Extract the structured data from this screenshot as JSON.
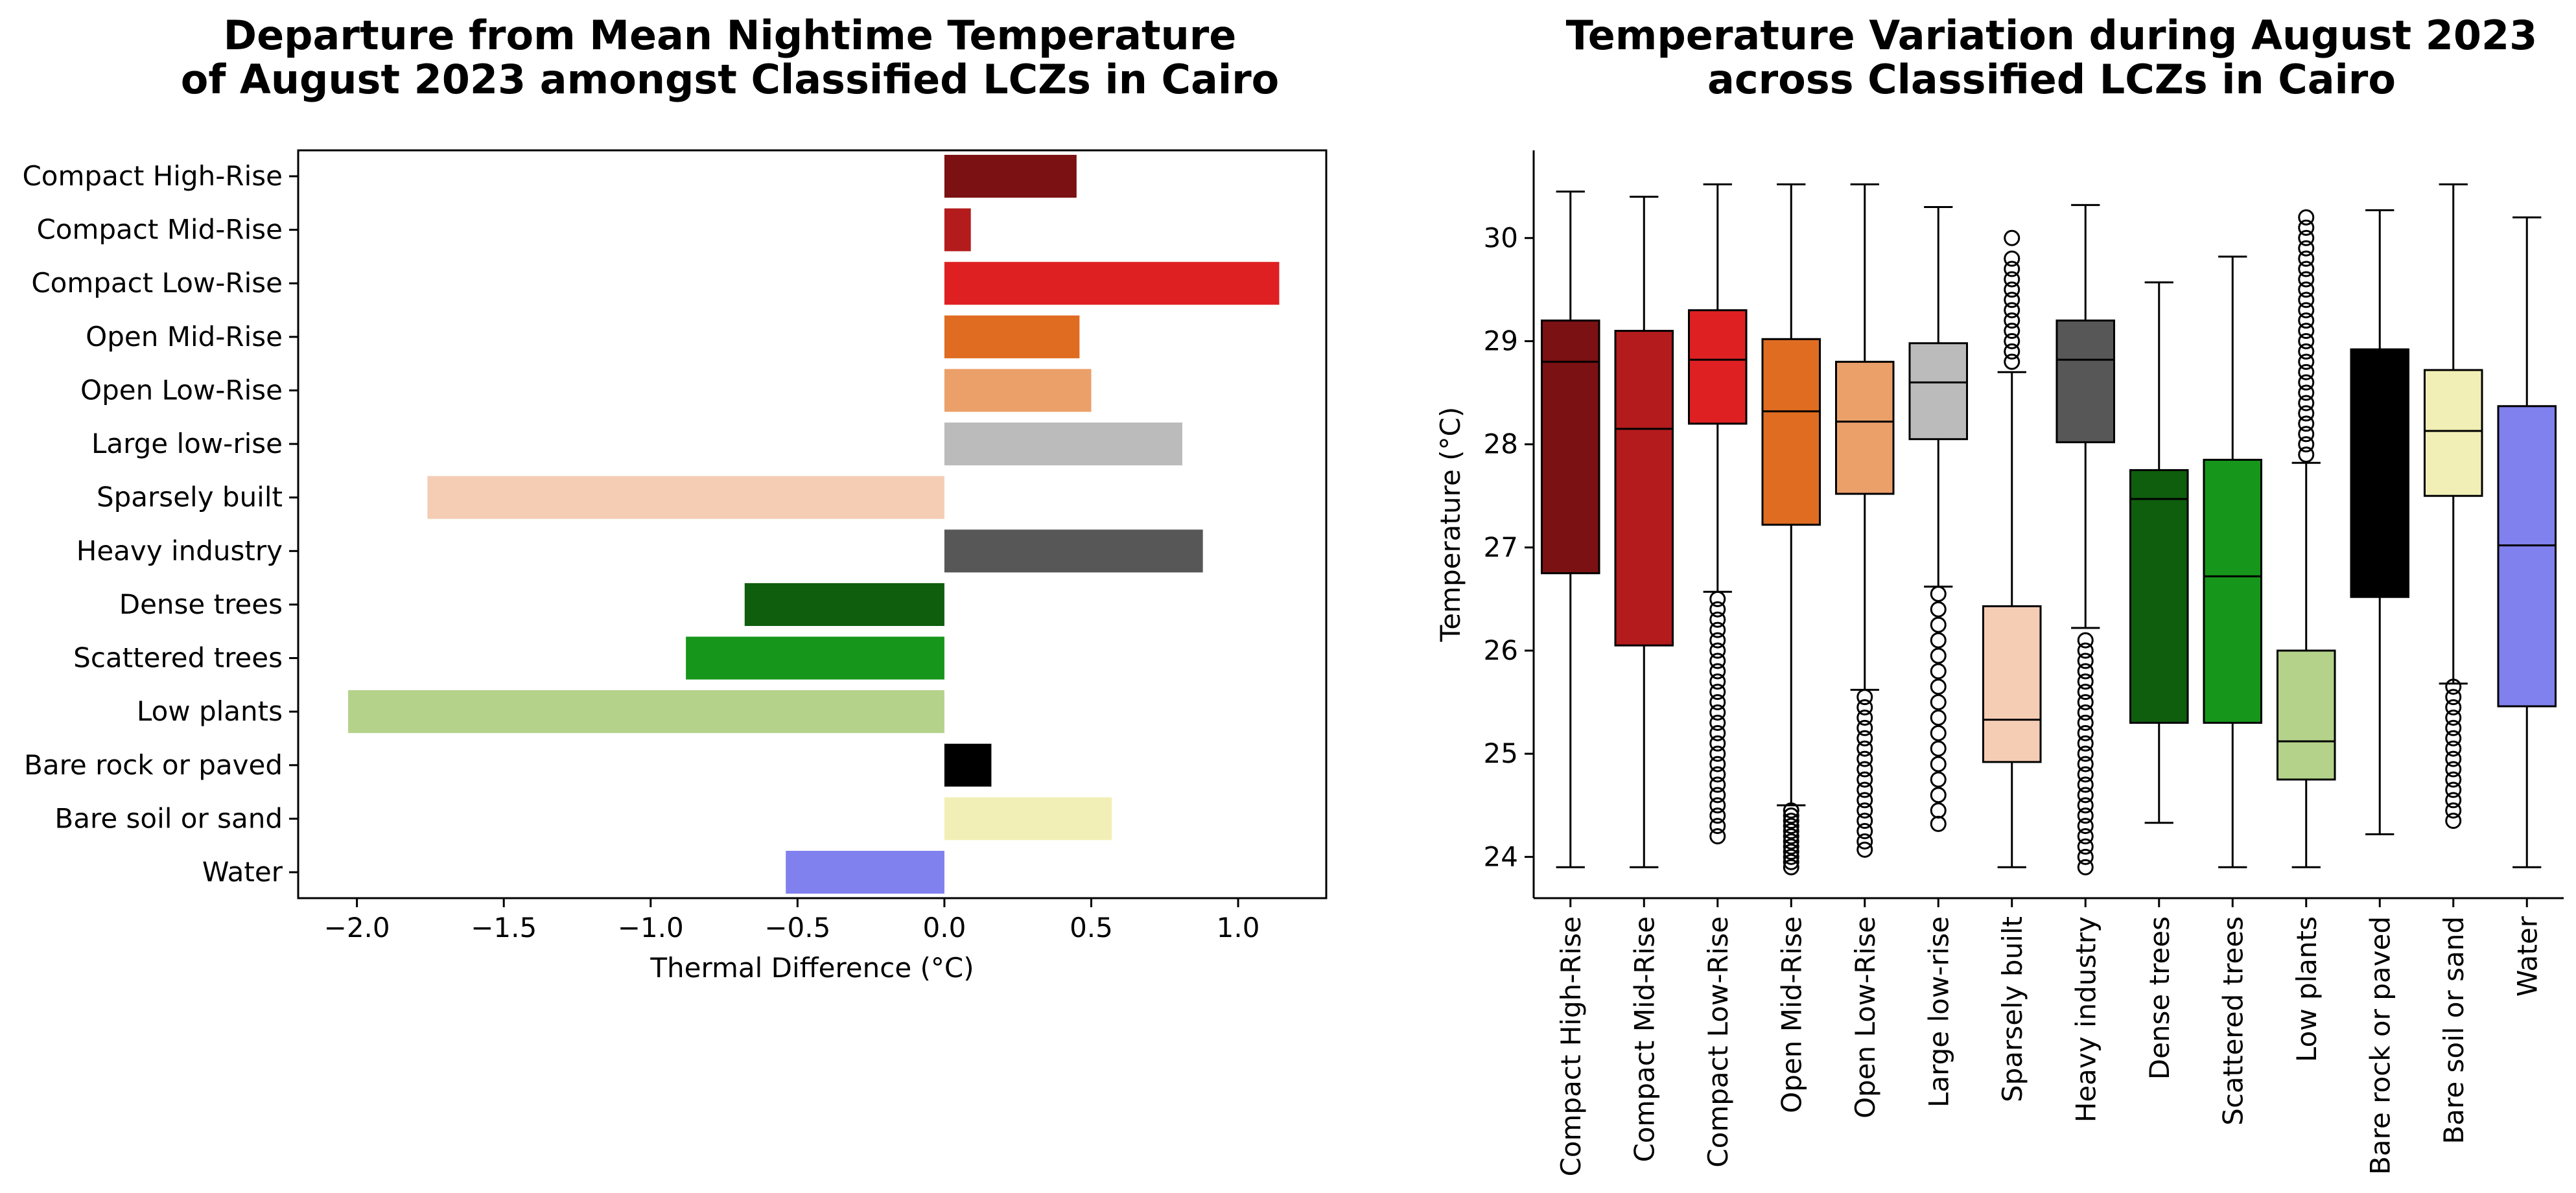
{
  "chart_data": [
    {
      "type": "bar",
      "orientation": "horizontal",
      "title": [
        "Departure from Mean Nightime Temperature",
        "of August 2023 amongst Classified LCZs in Cairo"
      ],
      "xlabel": "Thermal Difference (°C)",
      "ylabel": "",
      "xlim": [
        -2.2,
        1.3
      ],
      "xticks": [
        -2.0,
        -1.5,
        -1.0,
        -0.5,
        0.0,
        0.5,
        1.0
      ],
      "xtick_labels": [
        "−2.0",
        "−1.5",
        "−1.0",
        "−0.5",
        "0.0",
        "0.5",
        "1.0"
      ],
      "grid": false,
      "categories": [
        "Compact High-Rise",
        "Compact Mid-Rise",
        "Compact Low-Rise",
        "Open Mid-Rise",
        "Open Low-Rise",
        "Large low-rise",
        "Sparsely built",
        "Heavy industry",
        "Dense trees",
        "Scattered trees",
        "Low plants",
        "Bare rock or paved",
        "Bare soil or sand",
        "Water"
      ],
      "values": [
        0.45,
        0.09,
        1.14,
        0.46,
        0.5,
        0.81,
        -1.76,
        0.88,
        -0.68,
        -0.88,
        -2.03,
        0.16,
        0.57,
        -0.54
      ],
      "colors": [
        "#7b1113",
        "#b31b1c",
        "#df2022",
        "#e06c21",
        "#eba06a",
        "#bbbbbb",
        "#f4cdb4",
        "#575757",
        "#0e5e0e",
        "#16961a",
        "#b4d28a",
        "#000000",
        "#f2efb6",
        "#8080ee"
      ]
    },
    {
      "type": "box",
      "title": [
        "Temperature Variation during August 2023",
        "across Classified LCZs in Cairo"
      ],
      "xlabel": "",
      "ylabel": "Temperature (°C)",
      "ylim": [
        23.6,
        30.85
      ],
      "yticks": [
        24,
        25,
        26,
        27,
        28,
        29,
        30
      ],
      "grid": false,
      "categories": [
        "Compact High-Rise",
        "Compact Mid-Rise",
        "Compact Low-Rise",
        "Open Mid-Rise",
        "Open Low-Rise",
        "Large low-rise",
        "Sparsely built",
        "Heavy industry",
        "Dense trees",
        "Scattered trees",
        "Low plants",
        "Bare rock or paved",
        "Bare soil or sand",
        "Water"
      ],
      "colors": [
        "#7b1113",
        "#b31b1c",
        "#df2022",
        "#e06c21",
        "#eba06a",
        "#bbbbbb",
        "#f4cdb4",
        "#575757",
        "#0e5e0e",
        "#16961a",
        "#b4d28a",
        "#000000",
        "#f2efb6",
        "#8080ee"
      ],
      "boxes": [
        {
          "whislo": 23.9,
          "q1": 26.75,
          "med": 28.8,
          "q3": 29.2,
          "whishi": 30.45,
          "fliers": []
        },
        {
          "whislo": 23.9,
          "q1": 26.05,
          "med": 28.15,
          "q3": 29.1,
          "whishi": 30.4,
          "fliers": []
        },
        {
          "whislo": 26.57,
          "q1": 28.2,
          "med": 28.82,
          "q3": 29.3,
          "whishi": 30.52,
          "fliers": [
            24.2,
            24.3,
            24.4,
            24.5,
            24.6,
            24.7,
            24.8,
            24.9,
            25.0,
            25.1,
            25.2,
            25.3,
            25.4,
            25.5,
            25.6,
            25.7,
            25.8,
            25.9,
            26.0,
            26.1,
            26.2,
            26.3,
            26.4,
            26.5
          ]
        },
        {
          "whislo": 24.5,
          "q1": 27.22,
          "med": 28.32,
          "q3": 29.02,
          "whishi": 30.52,
          "fliers": [
            23.9,
            23.95,
            24.0,
            24.05,
            24.1,
            24.15,
            24.2,
            24.25,
            24.3,
            24.35,
            24.4,
            24.45
          ]
        },
        {
          "whislo": 25.62,
          "q1": 27.52,
          "med": 28.22,
          "q3": 28.8,
          "whishi": 30.52,
          "fliers": [
            24.07,
            24.15,
            24.25,
            24.35,
            24.45,
            24.55,
            24.65,
            24.75,
            24.85,
            24.95,
            25.05,
            25.15,
            25.25,
            25.35,
            25.45,
            25.55
          ]
        },
        {
          "whislo": 26.62,
          "q1": 28.05,
          "med": 28.6,
          "q3": 28.98,
          "whishi": 30.3,
          "fliers": [
            24.32,
            24.45,
            24.6,
            24.75,
            24.9,
            25.05,
            25.2,
            25.35,
            25.5,
            25.65,
            25.8,
            25.95,
            26.1,
            26.25,
            26.4,
            26.55
          ]
        },
        {
          "whislo": 23.9,
          "q1": 24.92,
          "med": 25.33,
          "q3": 26.43,
          "whishi": 28.7,
          "fliers": [
            28.8,
            28.9,
            29.0,
            29.1,
            29.2,
            29.3,
            29.4,
            29.5,
            29.6,
            29.7,
            29.8,
            30.0
          ]
        },
        {
          "whislo": 26.22,
          "q1": 28.02,
          "med": 28.82,
          "q3": 29.2,
          "whishi": 30.32,
          "fliers": [
            23.9,
            24.0,
            24.1,
            24.2,
            24.3,
            24.4,
            24.5,
            24.6,
            24.7,
            24.8,
            24.9,
            25.0,
            25.1,
            25.2,
            25.3,
            25.4,
            25.5,
            25.6,
            25.7,
            25.8,
            25.9,
            26.0,
            26.1
          ]
        },
        {
          "whislo": 24.33,
          "q1": 25.3,
          "med": 27.47,
          "q3": 27.75,
          "whishi": 29.57,
          "fliers": []
        },
        {
          "whislo": 23.9,
          "q1": 25.3,
          "med": 26.72,
          "q3": 27.85,
          "whishi": 29.82,
          "fliers": []
        },
        {
          "whislo": 23.9,
          "q1": 24.75,
          "med": 25.12,
          "q3": 26.0,
          "whishi": 27.82,
          "fliers": [
            27.9,
            28.0,
            28.1,
            28.2,
            28.3,
            28.4,
            28.5,
            28.6,
            28.7,
            28.8,
            28.9,
            29.0,
            29.1,
            29.2,
            29.3,
            29.4,
            29.5,
            29.6,
            29.7,
            29.8,
            29.9,
            30.0,
            30.1,
            30.2
          ]
        },
        {
          "whislo": 24.22,
          "q1": 26.52,
          "med": 28.92,
          "q3": 28.92,
          "whishi": 30.27,
          "fliers": []
        },
        {
          "whislo": 25.68,
          "q1": 27.5,
          "med": 28.13,
          "q3": 28.72,
          "whishi": 30.52,
          "fliers": [
            24.35,
            24.45,
            24.55,
            24.65,
            24.75,
            24.85,
            24.95,
            25.05,
            25.15,
            25.25,
            25.35,
            25.45,
            25.55,
            25.65
          ]
        },
        {
          "whislo": 23.9,
          "q1": 25.46,
          "med": 27.02,
          "q3": 28.37,
          "whishi": 30.2,
          "fliers": []
        }
      ]
    }
  ]
}
